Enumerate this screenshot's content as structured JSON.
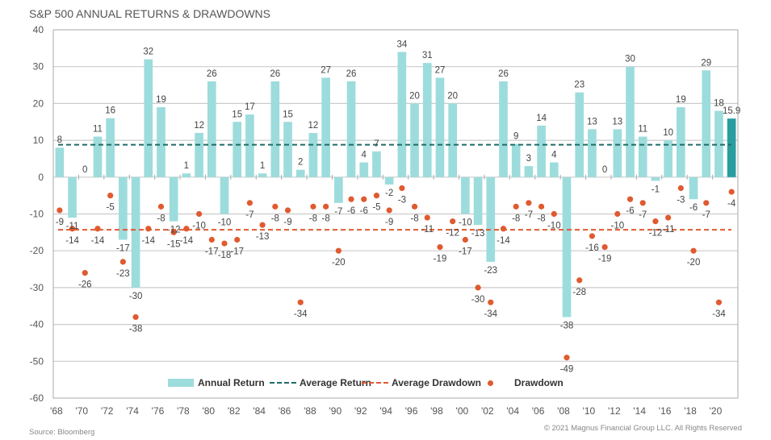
{
  "title": "S&P 500 ANNUAL RETURNS & DRAWDOWNS",
  "source": "Source: Bloomberg",
  "copyright": "© 2021 Magnus Financial Group LLC. All Rights Reserved",
  "colors": {
    "bar": "#9ddcdc",
    "bar_highlight": "#2a9d9f",
    "avg_return_line": "#1e6b66",
    "avg_drawdown_line": "#e05a30",
    "drawdown_dot": "#e05a30",
    "grid": "#cccccc"
  },
  "legend": [
    {
      "key": "annual_return",
      "label": "Annual Return"
    },
    {
      "key": "average_return",
      "label": "Average Return"
    },
    {
      "key": "average_drawdown",
      "label": "Average Drawdown"
    },
    {
      "key": "drawdown",
      "label": "Drawdown"
    }
  ],
  "chart_data": {
    "type": "bar",
    "title": "S&P 500 ANNUAL RETURNS & DRAWDOWNS",
    "xlabel": "",
    "ylabel": "",
    "ylim": [
      -60,
      40
    ],
    "yticks": [
      40,
      30,
      20,
      10,
      0,
      -10,
      -20,
      -30,
      -40,
      -50,
      -60
    ],
    "grid": true,
    "legend_position": "bottom",
    "categories": [
      1968,
      1969,
      1970,
      1971,
      1972,
      1973,
      1974,
      1975,
      1976,
      1977,
      1978,
      1979,
      1980,
      1981,
      1982,
      1983,
      1984,
      1985,
      1986,
      1987,
      1988,
      1989,
      1990,
      1991,
      1992,
      1993,
      1994,
      1995,
      1996,
      1997,
      1998,
      1999,
      2000,
      2001,
      2002,
      2003,
      2004,
      2005,
      2006,
      2007,
      2008,
      2009,
      2010,
      2011,
      2012,
      2013,
      2014,
      2015,
      2016,
      2017,
      2018,
      2019,
      2020,
      2021
    ],
    "xtick_labels": [
      "'68",
      "'70",
      "'72",
      "'74",
      "'76",
      "'78",
      "'80",
      "'82",
      "'84",
      "'86",
      "'88",
      "'90",
      "'92",
      "'94",
      "'96",
      "'98",
      "'00",
      "'02",
      "'04",
      "'06",
      "'08",
      "'10",
      "'12",
      "'14",
      "'16",
      "'18",
      "'20"
    ],
    "series": [
      {
        "name": "Annual Return",
        "type": "bar",
        "values": [
          8,
          -11,
          0,
          11,
          16,
          -17,
          -30,
          32,
          19,
          -12,
          1,
          12,
          26,
          -10,
          15,
          17,
          1,
          26,
          15,
          2,
          12,
          27,
          -7,
          26,
          4,
          7,
          -2,
          34,
          20,
          31,
          27,
          20,
          -10,
          -13,
          -23,
          26,
          9,
          3,
          14,
          4,
          -38,
          23,
          13,
          0,
          13,
          30,
          11,
          -1,
          10,
          19,
          -6,
          29,
          18,
          15.9
        ],
        "highlight_last": true
      },
      {
        "name": "Drawdown",
        "type": "scatter",
        "values": [
          -9,
          -14,
          -26,
          -14,
          -5,
          -23,
          -38,
          -14,
          -8,
          -15,
          -14,
          -10,
          -17,
          -18,
          -17,
          -7,
          -13,
          -8,
          -9,
          -34,
          -8,
          -8,
          -20,
          -6,
          -6,
          -5,
          -9,
          -3,
          -8,
          -11,
          -19,
          -12,
          -17,
          -30,
          -34,
          -14,
          -8,
          -7,
          -8,
          -10,
          -49,
          -28,
          -16,
          -19,
          -10,
          -6,
          -7,
          -12,
          -11,
          -3,
          -20,
          -7,
          -34,
          -4
        ]
      },
      {
        "name": "Average Return",
        "type": "line",
        "value": 8.8
      },
      {
        "name": "Average Drawdown",
        "type": "line",
        "value": -14.3
      }
    ]
  }
}
